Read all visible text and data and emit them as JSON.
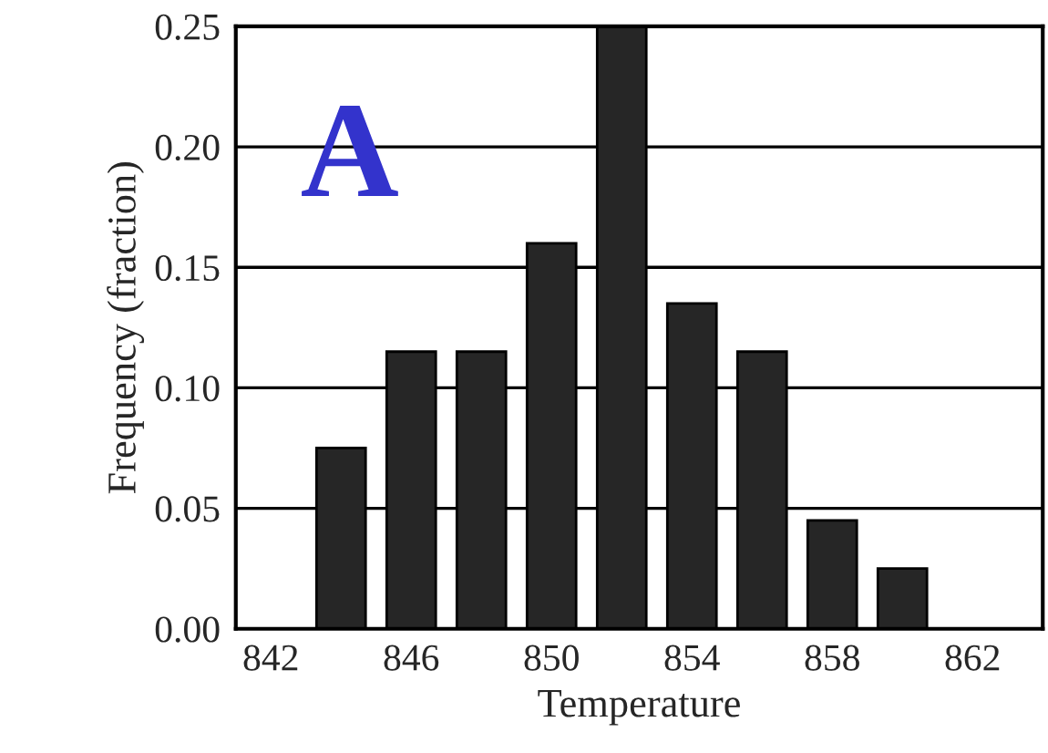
{
  "chart_data": {
    "type": "bar",
    "xlabel": "Temperature",
    "ylabel": "Frequency (fraction)",
    "x": [
      844,
      846,
      848,
      850,
      852,
      854,
      856,
      858,
      860
    ],
    "values": [
      0.075,
      0.115,
      0.115,
      0.16,
      0.25,
      0.135,
      0.115,
      0.045,
      0.025
    ],
    "color": "#262626",
    "xlim": [
      841,
      864
    ],
    "xticks": [
      842,
      846,
      850,
      854,
      858,
      862
    ],
    "ylim": [
      0,
      0.25
    ],
    "yticks": [
      {
        "value": 0,
        "label": "0.00"
      },
      {
        "value": 0.05,
        "label": "0.05"
      },
      {
        "value": 0.1,
        "label": "0.10"
      },
      {
        "value": 0.15,
        "label": "0.15"
      },
      {
        "value": 0.2,
        "label": "0.20"
      },
      {
        "value": 0.25,
        "label": "0.25"
      }
    ],
    "grid": "y",
    "annotations": [
      "A"
    ]
  }
}
